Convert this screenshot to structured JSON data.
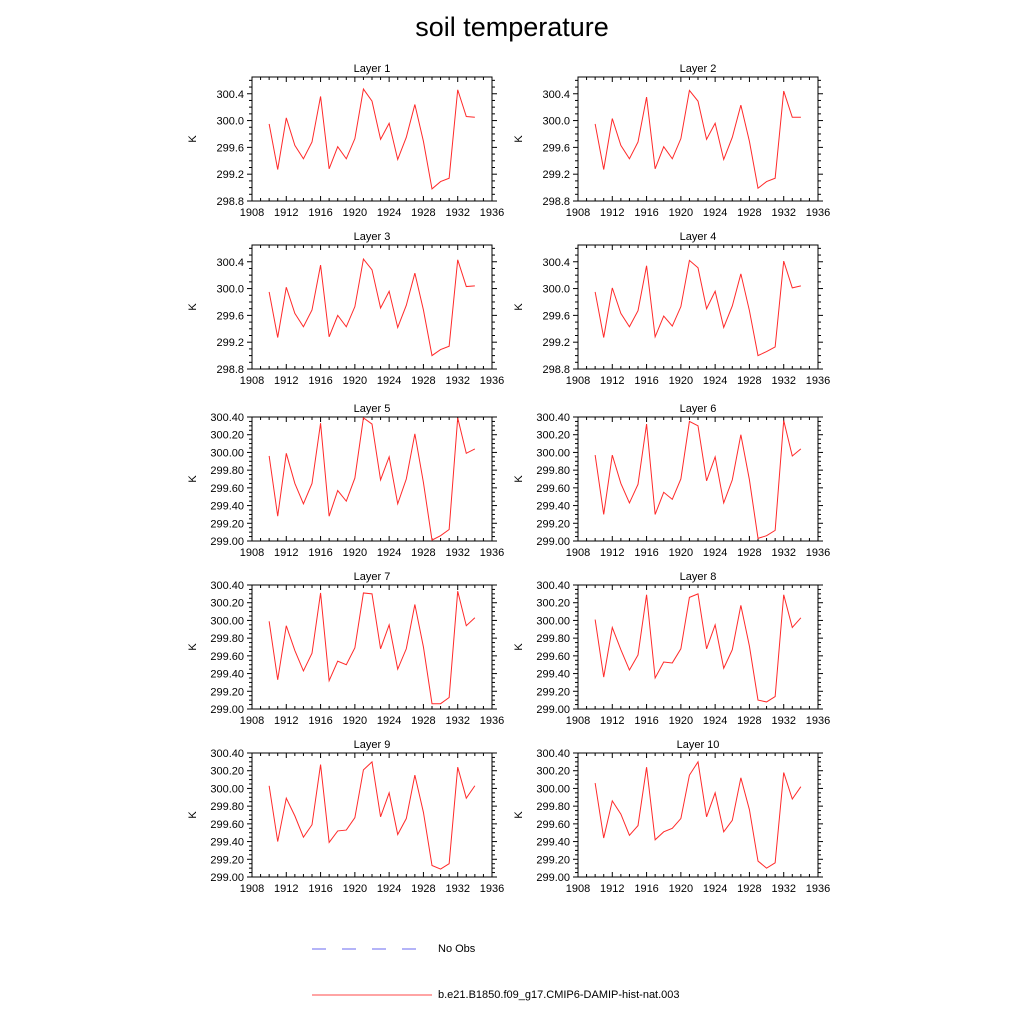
{
  "title": "soil temperature",
  "legend": [
    {
      "label": "No Obs",
      "color": "#6a6af0",
      "dash": "dashed"
    },
    {
      "label": "b.e21.B1850.f09_g17.CMIP6-DAMIP-hist-nat.003",
      "color": "#ff4a4a",
      "dash": "solid"
    }
  ],
  "chart_data": [
    {
      "type": "line",
      "title": "Layer 1",
      "ylabel": "K",
      "xlim": [
        1908,
        1936
      ],
      "xticks": [
        1908,
        1912,
        1916,
        1920,
        1924,
        1928,
        1932,
        1936
      ],
      "ylim": [
        298.8,
        300.65
      ],
      "yticks": [
        "298.8",
        "299.2",
        "299.6",
        "300.0",
        "300.4"
      ],
      "x": [
        1910,
        1911,
        1912,
        1913,
        1914,
        1915,
        1916,
        1917,
        1918,
        1919,
        1920,
        1921,
        1922,
        1923,
        1924,
        1925,
        1926,
        1927,
        1928,
        1929,
        1930,
        1931,
        1932,
        1933,
        1934
      ],
      "series": [
        {
          "values": [
            299.95,
            299.27,
            300.04,
            299.63,
            299.43,
            299.68,
            300.36,
            299.28,
            299.61,
            299.43,
            299.73,
            300.47,
            300.29,
            299.72,
            299.96,
            299.42,
            299.75,
            300.24,
            299.69,
            298.98,
            299.09,
            299.14,
            300.46,
            300.06,
            300.05
          ]
        }
      ]
    },
    {
      "type": "line",
      "title": "Layer 2",
      "ylabel": "K",
      "xlim": [
        1908,
        1936
      ],
      "xticks": [
        1908,
        1912,
        1916,
        1920,
        1924,
        1928,
        1932,
        1936
      ],
      "ylim": [
        298.8,
        300.65
      ],
      "yticks": [
        "298.8",
        "299.2",
        "299.6",
        "300.0",
        "300.4"
      ],
      "x": [
        1910,
        1911,
        1912,
        1913,
        1914,
        1915,
        1916,
        1917,
        1918,
        1919,
        1920,
        1921,
        1922,
        1923,
        1924,
        1925,
        1926,
        1927,
        1928,
        1929,
        1930,
        1931,
        1932,
        1933,
        1934
      ],
      "series": [
        {
          "values": [
            299.95,
            299.27,
            300.03,
            299.63,
            299.43,
            299.68,
            300.35,
            299.28,
            299.61,
            299.43,
            299.73,
            300.45,
            300.29,
            299.72,
            299.96,
            299.42,
            299.75,
            300.23,
            299.69,
            298.99,
            299.09,
            299.14,
            300.44,
            300.05,
            300.05
          ]
        }
      ]
    },
    {
      "type": "line",
      "title": "Layer 3",
      "ylabel": "K",
      "xlim": [
        1908,
        1936
      ],
      "xticks": [
        1908,
        1912,
        1916,
        1920,
        1924,
        1928,
        1932,
        1936
      ],
      "ylim": [
        298.8,
        300.65
      ],
      "yticks": [
        "298.8",
        "299.2",
        "299.6",
        "300.0",
        "300.4"
      ],
      "x": [
        1910,
        1911,
        1912,
        1913,
        1914,
        1915,
        1916,
        1917,
        1918,
        1919,
        1920,
        1921,
        1922,
        1923,
        1924,
        1925,
        1926,
        1927,
        1928,
        1929,
        1930,
        1931,
        1932,
        1933,
        1934
      ],
      "series": [
        {
          "values": [
            299.95,
            299.27,
            300.02,
            299.63,
            299.43,
            299.68,
            300.35,
            299.28,
            299.6,
            299.43,
            299.73,
            300.44,
            300.28,
            299.71,
            299.96,
            299.42,
            299.75,
            300.23,
            299.68,
            299.0,
            299.09,
            299.14,
            300.43,
            300.03,
            300.04
          ]
        }
      ]
    },
    {
      "type": "line",
      "title": "Layer 4",
      "ylabel": "K",
      "xlim": [
        1908,
        1936
      ],
      "xticks": [
        1908,
        1912,
        1916,
        1920,
        1924,
        1928,
        1932,
        1936
      ],
      "ylim": [
        298.8,
        300.65
      ],
      "yticks": [
        "298.8",
        "299.2",
        "299.6",
        "300.0",
        "300.4"
      ],
      "x": [
        1910,
        1911,
        1912,
        1913,
        1914,
        1915,
        1916,
        1917,
        1918,
        1919,
        1920,
        1921,
        1922,
        1923,
        1924,
        1925,
        1926,
        1927,
        1928,
        1929,
        1930,
        1931,
        1932,
        1933,
        1934
      ],
      "series": [
        {
          "values": [
            299.95,
            299.27,
            300.01,
            299.63,
            299.43,
            299.67,
            300.34,
            299.28,
            299.59,
            299.44,
            299.73,
            300.42,
            300.31,
            299.7,
            299.96,
            299.42,
            299.74,
            300.22,
            299.67,
            299.0,
            299.06,
            299.13,
            300.41,
            300.01,
            300.04
          ]
        }
      ]
    },
    {
      "type": "line",
      "title": "Layer 5",
      "ylabel": "K",
      "xlim": [
        1908,
        1936
      ],
      "xticks": [
        1908,
        1912,
        1916,
        1920,
        1924,
        1928,
        1932,
        1936
      ],
      "ylim": [
        299.0,
        300.4
      ],
      "yticks": [
        "299.00",
        "299.20",
        "299.40",
        "299.60",
        "299.80",
        "300.00",
        "300.20",
        "300.40"
      ],
      "x": [
        1910,
        1911,
        1912,
        1913,
        1914,
        1915,
        1916,
        1917,
        1918,
        1919,
        1920,
        1921,
        1922,
        1923,
        1924,
        1925,
        1926,
        1927,
        1928,
        1929,
        1930,
        1931,
        1932,
        1933,
        1934
      ],
      "series": [
        {
          "values": [
            299.96,
            299.28,
            299.99,
            299.65,
            299.42,
            299.65,
            300.33,
            299.28,
            299.57,
            299.45,
            299.71,
            300.39,
            300.32,
            299.69,
            299.95,
            299.42,
            299.7,
            300.21,
            299.66,
            299.01,
            299.06,
            299.13,
            300.39,
            299.99,
            300.04
          ]
        }
      ]
    },
    {
      "type": "line",
      "title": "Layer 6",
      "ylabel": "K",
      "xlim": [
        1908,
        1936
      ],
      "xticks": [
        1908,
        1912,
        1916,
        1920,
        1924,
        1928,
        1932,
        1936
      ],
      "ylim": [
        299.0,
        300.4
      ],
      "yticks": [
        "299.00",
        "299.20",
        "299.40",
        "299.60",
        "299.80",
        "300.00",
        "300.20",
        "300.40"
      ],
      "x": [
        1910,
        1911,
        1912,
        1913,
        1914,
        1915,
        1916,
        1917,
        1918,
        1919,
        1920,
        1921,
        1922,
        1923,
        1924,
        1925,
        1926,
        1927,
        1928,
        1929,
        1930,
        1931,
        1932,
        1933,
        1934
      ],
      "series": [
        {
          "values": [
            299.97,
            299.3,
            299.97,
            299.65,
            299.43,
            299.64,
            300.32,
            299.3,
            299.55,
            299.47,
            299.7,
            300.35,
            300.3,
            299.68,
            299.95,
            299.43,
            299.69,
            300.2,
            299.69,
            299.03,
            299.06,
            299.12,
            300.36,
            299.96,
            300.04
          ]
        }
      ]
    },
    {
      "type": "line",
      "title": "Layer 7",
      "ylabel": "K",
      "xlim": [
        1908,
        1936
      ],
      "xticks": [
        1908,
        1912,
        1916,
        1920,
        1924,
        1928,
        1932,
        1936
      ],
      "ylim": [
        299.0,
        300.4
      ],
      "yticks": [
        "299.00",
        "299.20",
        "299.40",
        "299.60",
        "299.80",
        "300.00",
        "300.20",
        "300.40"
      ],
      "x": [
        1910,
        1911,
        1912,
        1913,
        1914,
        1915,
        1916,
        1917,
        1918,
        1919,
        1920,
        1921,
        1922,
        1923,
        1924,
        1925,
        1926,
        1927,
        1928,
        1929,
        1930,
        1931,
        1932,
        1933,
        1934
      ],
      "series": [
        {
          "values": [
            299.99,
            299.33,
            299.94,
            299.66,
            299.43,
            299.63,
            300.31,
            299.32,
            299.54,
            299.5,
            299.69,
            300.31,
            300.3,
            299.68,
            299.95,
            299.45,
            299.68,
            300.18,
            299.7,
            299.06,
            299.06,
            299.13,
            300.33,
            299.94,
            300.03
          ]
        }
      ]
    },
    {
      "type": "line",
      "title": "Layer 8",
      "ylabel": "K",
      "xlim": [
        1908,
        1936
      ],
      "xticks": [
        1908,
        1912,
        1916,
        1920,
        1924,
        1928,
        1932,
        1936
      ],
      "ylim": [
        299.0,
        300.4
      ],
      "yticks": [
        "299.00",
        "299.20",
        "299.40",
        "299.60",
        "299.80",
        "300.00",
        "300.20",
        "300.40"
      ],
      "x": [
        1910,
        1911,
        1912,
        1913,
        1914,
        1915,
        1916,
        1917,
        1918,
        1919,
        1920,
        1921,
        1922,
        1923,
        1924,
        1925,
        1926,
        1927,
        1928,
        1929,
        1930,
        1931,
        1932,
        1933,
        1934
      ],
      "series": [
        {
          "values": [
            300.01,
            299.36,
            299.92,
            299.67,
            299.44,
            299.61,
            300.29,
            299.35,
            299.53,
            299.52,
            299.68,
            300.26,
            300.3,
            299.68,
            299.95,
            299.46,
            299.67,
            300.17,
            299.71,
            299.1,
            299.08,
            299.14,
            300.29,
            299.92,
            300.03
          ]
        }
      ]
    },
    {
      "type": "line",
      "title": "Layer 9",
      "ylabel": "K",
      "xlim": [
        1908,
        1936
      ],
      "xticks": [
        1908,
        1912,
        1916,
        1920,
        1924,
        1928,
        1932,
        1936
      ],
      "ylim": [
        299.0,
        300.4
      ],
      "yticks": [
        "299.00",
        "299.20",
        "299.40",
        "299.60",
        "299.80",
        "300.00",
        "300.20",
        "300.40"
      ],
      "x": [
        1910,
        1911,
        1912,
        1913,
        1914,
        1915,
        1916,
        1917,
        1918,
        1919,
        1920,
        1921,
        1922,
        1923,
        1924,
        1925,
        1926,
        1927,
        1928,
        1929,
        1930,
        1931,
        1932,
        1933,
        1934
      ],
      "series": [
        {
          "values": [
            300.03,
            299.4,
            299.89,
            299.69,
            299.45,
            299.59,
            300.27,
            299.39,
            299.52,
            299.53,
            299.67,
            300.21,
            300.3,
            299.68,
            299.95,
            299.48,
            299.66,
            300.15,
            299.73,
            299.13,
            299.09,
            299.15,
            300.24,
            299.89,
            300.03
          ]
        }
      ]
    },
    {
      "type": "line",
      "title": "Layer 10",
      "ylabel": "K",
      "xlim": [
        1908,
        1936
      ],
      "xticks": [
        1908,
        1912,
        1916,
        1920,
        1924,
        1928,
        1932,
        1936
      ],
      "ylim": [
        299.0,
        300.4
      ],
      "yticks": [
        "299.00",
        "299.20",
        "299.40",
        "299.60",
        "299.80",
        "300.00",
        "300.20",
        "300.40"
      ],
      "x": [
        1910,
        1911,
        1912,
        1913,
        1914,
        1915,
        1916,
        1917,
        1918,
        1919,
        1920,
        1921,
        1922,
        1923,
        1924,
        1925,
        1926,
        1927,
        1928,
        1929,
        1930,
        1931,
        1932,
        1933,
        1934
      ],
      "series": [
        {
          "values": [
            300.06,
            299.44,
            299.86,
            299.71,
            299.47,
            299.58,
            300.24,
            299.42,
            299.51,
            299.55,
            299.66,
            300.15,
            300.3,
            299.68,
            299.95,
            299.51,
            299.64,
            300.12,
            299.76,
            299.18,
            299.1,
            299.16,
            300.18,
            299.88,
            300.02
          ]
        }
      ]
    }
  ]
}
